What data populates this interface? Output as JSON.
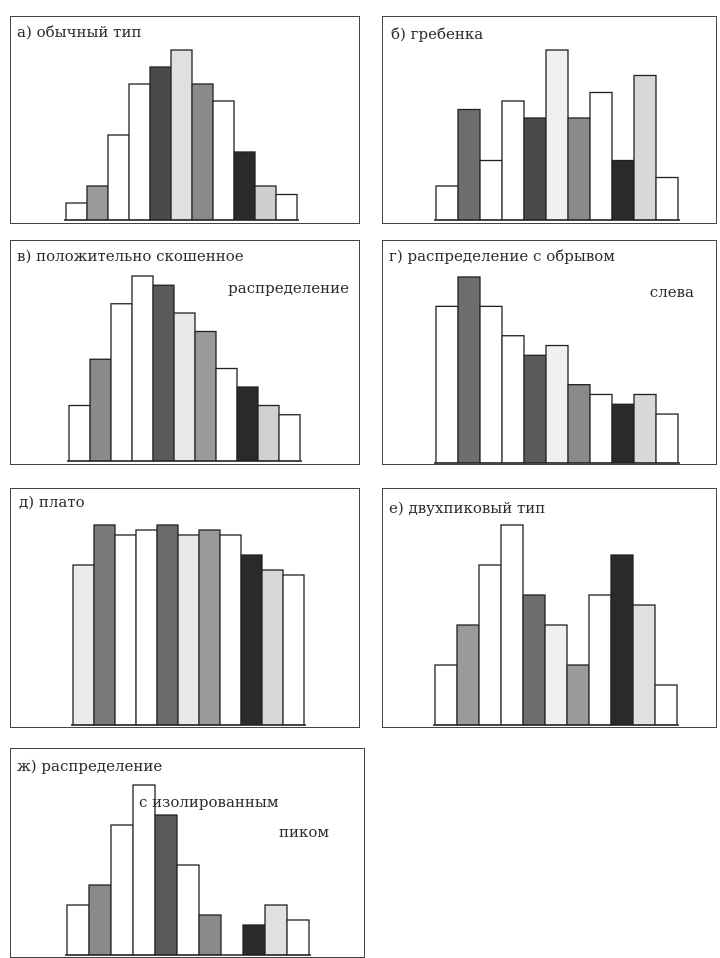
{
  "chart_data": [
    {
      "type": "bar",
      "title": "а) обычный тип",
      "title_lines": [
        "а) обычный тип"
      ],
      "values": [
        2,
        4,
        10,
        16,
        18,
        20,
        16,
        14,
        8,
        4,
        3
      ],
      "shades": [
        "#ffffff",
        "#9a9a9a",
        "#ffffff",
        "#ffffff",
        "#4a4a4a",
        "#e0e0e0",
        "#8a8a8a",
        "#ffffff",
        "#2a2a2a",
        "#cfcfcf",
        "#ffffff"
      ]
    },
    {
      "type": "bar",
      "title": "б) гребенка",
      "title_lines": [
        "б) гребенка"
      ],
      "values": [
        4,
        13,
        7,
        14,
        12,
        20,
        12,
        15,
        7,
        17,
        5
      ],
      "shades": [
        "#ffffff",
        "#6e6e6e",
        "#ffffff",
        "#ffffff",
        "#4a4a4a",
        "#f0f0f0",
        "#8a8a8a",
        "#ffffff",
        "#2a2a2a",
        "#d8d8d8",
        "#ffffff"
      ]
    },
    {
      "type": "bar",
      "title": "в) положительно скошенное распределение",
      "title_lines": [
        "в) положительно скошенное",
        "распределение"
      ],
      "values": [
        6,
        11,
        17,
        20,
        19,
        16,
        14,
        10,
        8,
        6,
        5
      ],
      "shades": [
        "#ffffff",
        "#8a8a8a",
        "#ffffff",
        "#ffffff",
        "#5a5a5a",
        "#e8e8e8",
        "#9a9a9a",
        "#ffffff",
        "#2a2a2a",
        "#d0d0d0",
        "#ffffff"
      ]
    },
    {
      "type": "bar",
      "title": "г) распределение с обрывом слева",
      "title_lines": [
        "г) распределение с обрывом",
        "слева"
      ],
      "values": [
        16,
        19,
        16,
        13,
        11,
        12,
        8,
        7,
        6,
        7,
        5
      ],
      "shades": [
        "#ffffff",
        "#6e6e6e",
        "#ffffff",
        "#ffffff",
        "#5a5a5a",
        "#f0f0f0",
        "#8a8a8a",
        "#ffffff",
        "#2a2a2a",
        "#d8d8d8",
        "#ffffff"
      ]
    },
    {
      "type": "bar",
      "title": "д) плато",
      "title_lines": [
        "д) плато"
      ],
      "values": [
        16,
        20,
        19,
        19.5,
        20,
        19,
        19.5,
        19,
        17,
        15.5,
        15
      ],
      "shades": [
        "#eaeaea",
        "#7a7a7a",
        "#ffffff",
        "#ffffff",
        "#6a6a6a",
        "#e8e8e8",
        "#9a9a9a",
        "#ffffff",
        "#2a2a2a",
        "#d8d8d8",
        "#ffffff"
      ]
    },
    {
      "type": "bar",
      "title": "е) двухпиковый тип",
      "title_lines": [
        "е) двухпиковый тип"
      ],
      "values": [
        6,
        10,
        16,
        20,
        13,
        10,
        6,
        13,
        17,
        12,
        4
      ],
      "shades": [
        "#ffffff",
        "#9a9a9a",
        "#ffffff",
        "#ffffff",
        "#6e6e6e",
        "#f0f0f0",
        "#9a9a9a",
        "#ffffff",
        "#2a2a2a",
        "#e0e0e0",
        "#ffffff"
      ]
    },
    {
      "type": "bar",
      "title": "ж) распределение с изолированным пиком",
      "title_lines": [
        "ж) распределение",
        "с изолированным",
        "пиком"
      ],
      "values": [
        5,
        7,
        13,
        17,
        14,
        9,
        4,
        0,
        3,
        5,
        3.5
      ],
      "shades": [
        "#ffffff",
        "#8a8a8a",
        "#ffffff",
        "#ffffff",
        "#5a5a5a",
        "#ffffff",
        "#8a8a8a",
        "#ffffff",
        "#2a2a2a",
        "#e0e0e0",
        "#ffffff"
      ]
    }
  ]
}
